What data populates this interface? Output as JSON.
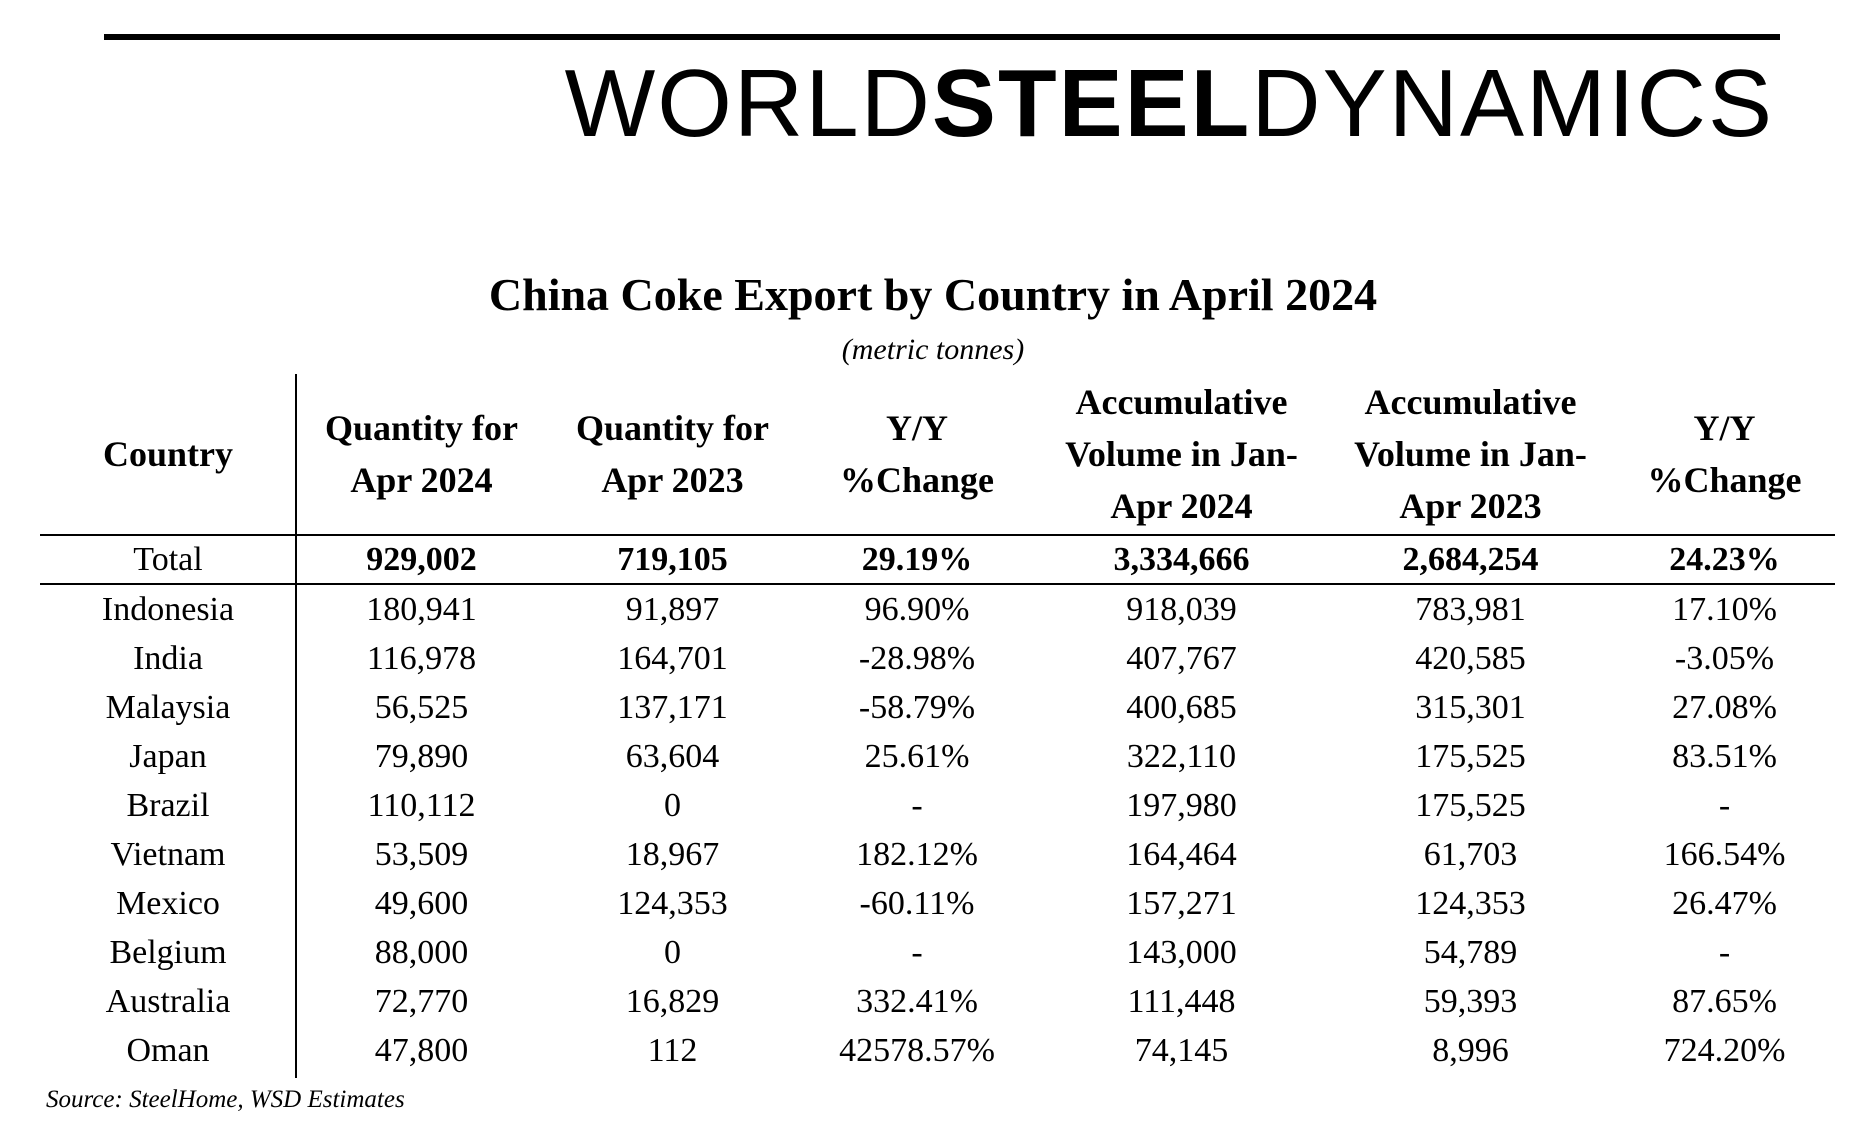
{
  "brand": {
    "part1": "WORLD",
    "part2": "STEEL",
    "part3": "DYNAMICS"
  },
  "chart_data": {
    "type": "table",
    "title": "China Coke Export by Country in April 2024",
    "subtitle": "(metric tonnes)",
    "columns": [
      [
        "Quantity for",
        "Apr 2024"
      ],
      [
        "Quantity for",
        "Apr 2023"
      ],
      [
        "Y/Y",
        "%Change"
      ],
      [
        "Accumulative",
        "Volume in Jan-",
        "Apr 2024"
      ],
      [
        "Accumulative",
        "Volume in Jan-",
        "Apr 2023"
      ],
      [
        "Y/Y",
        "%Change"
      ]
    ],
    "row_header_label": "Country",
    "total": {
      "label": "Total",
      "values": [
        "929,002",
        "719,105",
        "29.19%",
        "3,334,666",
        "2,684,254",
        "24.23%"
      ]
    },
    "rows": [
      {
        "country": "Indonesia",
        "values": [
          "180,941",
          "91,897",
          "96.90%",
          "918,039",
          "783,981",
          "17.10%"
        ]
      },
      {
        "country": "India",
        "values": [
          "116,978",
          "164,701",
          "-28.98%",
          "407,767",
          "420,585",
          "-3.05%"
        ]
      },
      {
        "country": "Malaysia",
        "values": [
          "56,525",
          "137,171",
          "-58.79%",
          "400,685",
          "315,301",
          "27.08%"
        ]
      },
      {
        "country": "Japan",
        "values": [
          "79,890",
          "63,604",
          "25.61%",
          "322,110",
          "175,525",
          "83.51%"
        ]
      },
      {
        "country": "Brazil",
        "values": [
          "110,112",
          "0",
          "-",
          "197,980",
          "175,525",
          "-"
        ]
      },
      {
        "country": "Vietnam",
        "values": [
          "53,509",
          "18,967",
          "182.12%",
          "164,464",
          "61,703",
          "166.54%"
        ]
      },
      {
        "country": "Mexico",
        "values": [
          "49,600",
          "124,353",
          "-60.11%",
          "157,271",
          "124,353",
          "26.47%"
        ]
      },
      {
        "country": "Belgium",
        "values": [
          "88,000",
          "0",
          "-",
          "143,000",
          "54,789",
          "-"
        ]
      },
      {
        "country": "Australia",
        "values": [
          "72,770",
          "16,829",
          "332.41%",
          "111,448",
          "59,393",
          "87.65%"
        ]
      },
      {
        "country": "Oman",
        "values": [
          "47,800",
          "112",
          "42578.57%",
          "74,145",
          "8,996",
          "724.20%"
        ]
      }
    ],
    "source": "Source: SteelHome, WSD Estimates"
  }
}
